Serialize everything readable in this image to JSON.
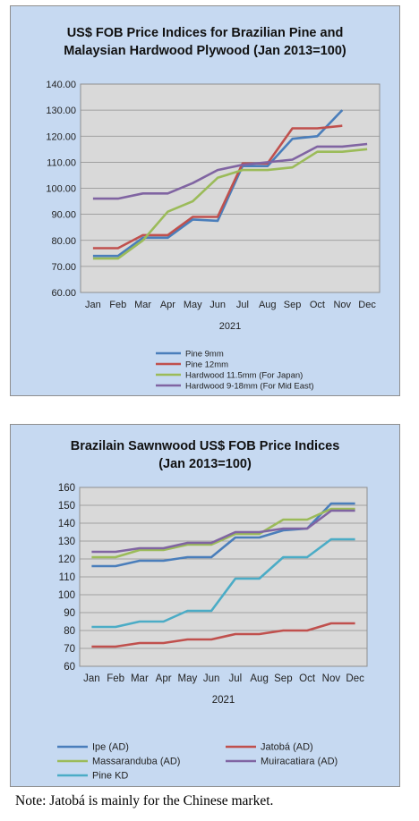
{
  "chart_data": [
    {
      "type": "line",
      "title_lines": [
        "US$ FOB Price Indices for Brazilian Pine and",
        "Malaysian Hardwood Plywood (Jan 2013=100)"
      ],
      "categories": [
        "Jan",
        "Feb",
        "Mar",
        "Apr",
        "May",
        "Jun",
        "Jul",
        "Aug",
        "Sep",
        "Oct",
        "Nov",
        "Dec"
      ],
      "xlabel": "2021",
      "ylim": [
        60,
        140
      ],
      "yticks": [
        "60.00",
        "70.00",
        "80.00",
        "90.00",
        "100.00",
        "110.00",
        "120.00",
        "130.00",
        "140.00"
      ],
      "grid": true,
      "legend_position": "bottom",
      "series": [
        {
          "name": "Pine 9mm",
          "color": "#4a7ebb",
          "values": [
            74,
            74,
            81,
            81,
            88,
            87.5,
            108.5,
            108.5,
            119,
            120,
            130,
            null
          ]
        },
        {
          "name": "Pine 12mm",
          "color": "#c0504d",
          "values": [
            77,
            77,
            82,
            82,
            89,
            89,
            109.5,
            109.5,
            123,
            123,
            124,
            null
          ]
        },
        {
          "name": "Hardwood 11.5mm (For Japan)",
          "color": "#9bbb59",
          "values": [
            73,
            73,
            80,
            91,
            95,
            104,
            107,
            107,
            108,
            114,
            114,
            115
          ]
        },
        {
          "name": "Hardwood 9-18mm (For Mid East)",
          "color": "#8064a2",
          "values": [
            96,
            96,
            98,
            98,
            102,
            107,
            109,
            110,
            111,
            116,
            116,
            117
          ]
        }
      ]
    },
    {
      "type": "line",
      "title_lines": [
        "Brazilain Sawnwood US$ FOB Price Indices",
        "(Jan 2013=100)"
      ],
      "categories": [
        "Jan",
        "Feb",
        "Mar",
        "Apr",
        "May",
        "Jun",
        "Jul",
        "Aug",
        "Sep",
        "Oct",
        "Nov",
        "Dec"
      ],
      "xlabel": "2021",
      "ylim": [
        60,
        160
      ],
      "yticks": [
        "60",
        "70",
        "80",
        "90",
        "100",
        "110",
        "120",
        "130",
        "140",
        "150",
        "160"
      ],
      "grid": true,
      "legend_position": "bottom",
      "series": [
        {
          "name": "Ipe (AD)",
          "color": "#4a7ebb",
          "values": [
            116,
            116,
            119,
            119,
            121,
            121,
            132,
            132,
            136,
            137,
            151,
            151
          ]
        },
        {
          "name": "Jatobá (AD)",
          "color": "#c0504d",
          "values": [
            71,
            71,
            73,
            73,
            75,
            75,
            78,
            78,
            80,
            80,
            84,
            84
          ]
        },
        {
          "name": "Massaranduba (AD)",
          "color": "#9bbb59",
          "values": [
            121,
            121,
            125,
            125,
            128,
            128,
            134,
            134,
            142,
            142,
            148,
            148
          ]
        },
        {
          "name": "Muiracatiara (AD)",
          "color": "#8064a2",
          "values": [
            124,
            124,
            126,
            126,
            129,
            129,
            135,
            135,
            137,
            137,
            147,
            147
          ]
        },
        {
          "name": "Pine KD",
          "color": "#4bacc6",
          "values": [
            82,
            82,
            85,
            85,
            91,
            91,
            109,
            109,
            121,
            121,
            131,
            131
          ]
        }
      ]
    }
  ],
  "note": "Note: Jatobá is mainly for the Chinese market."
}
